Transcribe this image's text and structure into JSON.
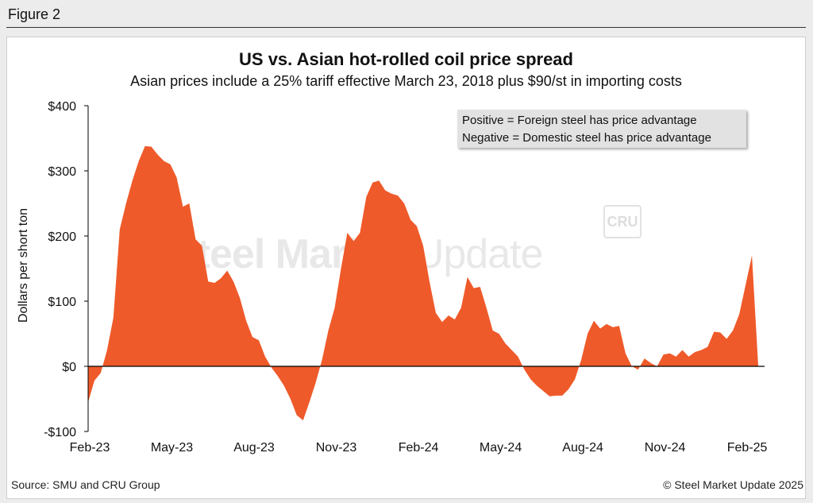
{
  "figure_label": "Figure 2",
  "legend": {
    "line1": "Positive = Foreign steel has price advantage",
    "line2": "Negative = Domestic steel has price advantage"
  },
  "footer": {
    "source": "Source: SMU and CRU Group",
    "copyright": "© Steel Market Update 2025"
  },
  "watermark": {
    "brand_bold": "Steel Market",
    "brand_light": " Update",
    "logo": "CRU"
  },
  "colors": {
    "area_fill": "#ef5a2a",
    "axis": "#000000"
  },
  "chart_data": {
    "type": "area",
    "title": "US vs. Asian hot-rolled coil price spread",
    "subtitle": "Asian prices include a 25% tariff effective March 23, 2018 plus $90/st in importing costs",
    "xlabel": "",
    "ylabel": "Dollars per short ton",
    "ylim": [
      -100,
      400
    ],
    "yticks": [
      -100,
      0,
      100,
      200,
      300,
      400
    ],
    "ytick_labels": [
      "-$100",
      "$0",
      "$100",
      "$200",
      "$300",
      "$400"
    ],
    "x_unit": "weeks since Feb-23",
    "xlim": [
      0,
      107
    ],
    "xticks": [
      0,
      13,
      26,
      39,
      52,
      65,
      78,
      91,
      104
    ],
    "xtick_labels": [
      "Feb-23",
      "May-23",
      "Aug-23",
      "Nov-23",
      "Feb-24",
      "May-24",
      "Aug-24",
      "Nov-24",
      "Feb-25"
    ],
    "series": [
      {
        "name": "Price spread",
        "x": [
          0,
          1,
          2,
          3,
          4,
          5,
          6,
          7,
          8,
          9,
          10,
          11,
          12,
          13,
          14,
          15,
          16,
          17,
          18,
          19,
          20,
          21,
          22,
          23,
          24,
          25,
          26,
          27,
          28,
          29,
          30,
          31,
          32,
          33,
          34,
          35,
          36,
          37,
          38,
          39,
          40,
          41,
          42,
          43,
          44,
          45,
          46,
          47,
          48,
          49,
          50,
          51,
          52,
          53,
          54,
          55,
          56,
          57,
          58,
          59,
          60,
          61,
          62,
          63,
          64,
          65,
          66,
          67,
          68,
          69,
          70,
          71,
          72,
          73,
          74,
          75,
          76,
          77,
          78,
          79,
          80,
          81,
          82,
          83,
          84,
          85,
          86,
          87,
          88,
          89,
          90,
          91,
          92,
          93,
          94,
          95,
          96,
          97,
          98,
          99,
          100,
          101,
          102,
          103,
          104,
          105,
          106
        ],
        "values": [
          -55,
          -22,
          -10,
          25,
          75,
          210,
          250,
          285,
          315,
          338,
          337,
          325,
          315,
          310,
          290,
          245,
          250,
          195,
          185,
          130,
          128,
          135,
          147,
          130,
          105,
          70,
          45,
          40,
          15,
          -2,
          -15,
          -30,
          -50,
          -75,
          -83,
          -55,
          -25,
          10,
          55,
          90,
          150,
          205,
          192,
          205,
          260,
          282,
          285,
          270,
          265,
          262,
          250,
          225,
          215,
          185,
          130,
          82,
          68,
          78,
          72,
          90,
          137,
          120,
          122,
          90,
          55,
          50,
          35,
          25,
          15,
          -5,
          -20,
          -30,
          -38,
          -46,
          -45,
          -45,
          -35,
          -20,
          10,
          50,
          70,
          58,
          65,
          60,
          62,
          20,
          0,
          -5,
          12,
          5,
          0,
          18,
          20,
          15,
          25,
          15,
          22,
          25,
          30,
          53,
          52,
          42,
          55,
          80,
          125,
          170,
          0
        ]
      }
    ]
  }
}
